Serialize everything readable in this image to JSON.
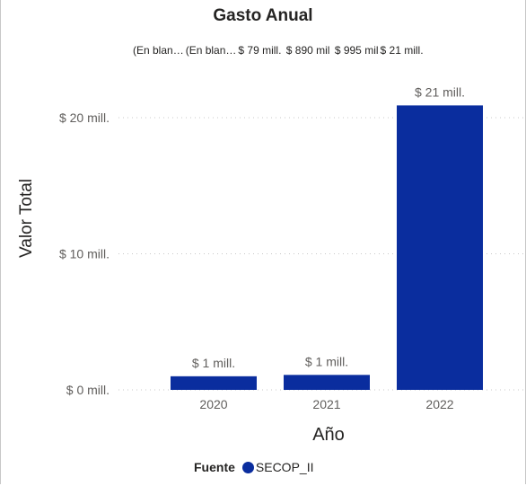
{
  "chart_data": {
    "type": "bar",
    "title": "Gasto Anual",
    "xlabel": "Año",
    "ylabel": "Valor Total",
    "categories": [
      "2020",
      "2021",
      "2022"
    ],
    "values": [
      1,
      1.1,
      20.9
    ],
    "data_labels": [
      "$ 1 mill.",
      "$ 1 mill.",
      "$ 21 mill."
    ],
    "yticks": [
      {
        "value": 0,
        "label": "$ 0 mill."
      },
      {
        "value": 10,
        "label": "$ 10 mill."
      },
      {
        "value": 20,
        "label": "$ 20 mill."
      }
    ],
    "ylim": [
      0,
      25
    ],
    "grid": true,
    "bar_color": "#0a2d9e",
    "top_labels": [
      "(En blan…",
      "(En blan…",
      "$ 79 mill.",
      "$ 890 mil",
      "$ 995 mil",
      "$ 21 mill."
    ],
    "legend": {
      "title": "Fuente",
      "entries": [
        {
          "label": "SECOP_II",
          "color": "#0a2d9e"
        }
      ],
      "position": "bottom"
    }
  }
}
